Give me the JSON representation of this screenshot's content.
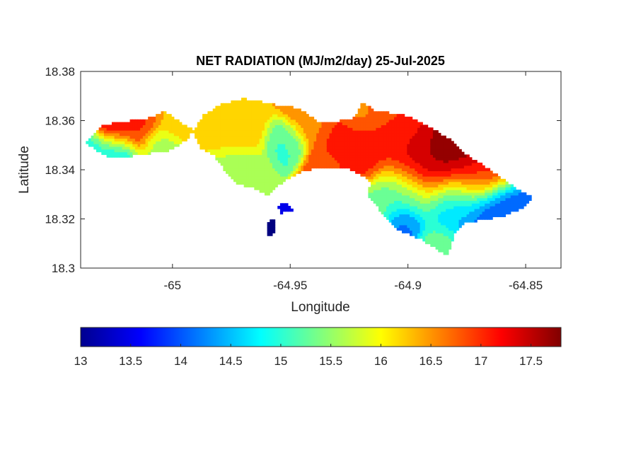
{
  "chart_data": {
    "type": "heatmap",
    "title": "NET RADIATION (MJ/m2/day) 25-Jul-2025",
    "xlabel": "Longitude",
    "ylabel": "Latitude",
    "xlim": [
      -65.039,
      -64.835
    ],
    "ylim": [
      18.3,
      18.38
    ],
    "xticks": [
      -65,
      -64.95,
      -64.9,
      -64.85
    ],
    "xtick_labels": [
      "-65",
      "-64.95",
      "-64.9",
      "-64.85"
    ],
    "yticks": [
      18.3,
      18.32,
      18.34,
      18.36,
      18.38
    ],
    "ytick_labels": [
      "18.3",
      "18.32",
      "18.34",
      "18.36",
      "18.38"
    ],
    "colorbar": {
      "colormap": "jet",
      "range": [
        13,
        17.8
      ],
      "ticks": [
        13,
        13.5,
        14,
        14.5,
        15,
        15.5,
        16,
        16.5,
        17,
        17.5
      ],
      "tick_labels": [
        "13",
        "13.5",
        "14",
        "14.5",
        "15",
        "15.5",
        "16",
        "16.5",
        "17",
        "17.5"
      ],
      "placement": "bottom"
    },
    "regions": [
      {
        "name": "west-strip",
        "polygon": [
          [
            -65.0365,
            18.351
          ],
          [
            -65.029,
            18.3585
          ],
          [
            -65.01,
            18.361
          ],
          [
            -65.0035,
            18.364
          ],
          [
            -64.996,
            18.359
          ],
          [
            -64.9915,
            18.3565
          ],
          [
            -64.993,
            18.353
          ],
          [
            -65.001,
            18.348
          ],
          [
            -65.011,
            18.3465
          ],
          [
            -65.025,
            18.3445
          ],
          [
            -65.031,
            18.347
          ],
          [
            -65.0365,
            18.351
          ]
        ]
      },
      {
        "name": "main-island",
        "polygon": [
          [
            -64.9915,
            18.3555
          ],
          [
            -64.987,
            18.362
          ],
          [
            -64.98,
            18.3665
          ],
          [
            -64.97,
            18.369
          ],
          [
            -64.956,
            18.3665
          ],
          [
            -64.946,
            18.365
          ],
          [
            -64.937,
            18.359
          ],
          [
            -64.929,
            18.36
          ],
          [
            -64.925,
            18.36
          ],
          [
            -64.922,
            18.3625
          ],
          [
            -64.9195,
            18.3675
          ],
          [
            -64.914,
            18.364
          ],
          [
            -64.902,
            18.3625
          ],
          [
            -64.893,
            18.3585
          ],
          [
            -64.882,
            18.3525
          ],
          [
            -64.878,
            18.348
          ],
          [
            -64.862,
            18.338
          ],
          [
            -64.852,
            18.331
          ],
          [
            -64.847,
            18.329
          ],
          [
            -64.852,
            18.324
          ],
          [
            -64.86,
            18.321
          ],
          [
            -64.876,
            18.3185
          ],
          [
            -64.88,
            18.3145
          ],
          [
            -64.883,
            18.305
          ],
          [
            -64.895,
            18.312
          ],
          [
            -64.905,
            18.316
          ],
          [
            -64.912,
            18.3235
          ],
          [
            -64.917,
            18.3295
          ],
          [
            -64.916,
            18.3355
          ],
          [
            -64.926,
            18.341
          ],
          [
            -64.935,
            18.3405
          ],
          [
            -64.943,
            18.34
          ],
          [
            -64.95,
            18.337
          ],
          [
            -64.956,
            18.333
          ],
          [
            -64.96,
            18.3295
          ],
          [
            -64.966,
            18.333
          ],
          [
            -64.973,
            18.334
          ],
          [
            -64.978,
            18.34
          ],
          [
            -64.982,
            18.3455
          ],
          [
            -64.988,
            18.349
          ],
          [
            -64.9915,
            18.3555
          ]
        ]
      },
      {
        "name": "small-islet-a",
        "polygon": [
          [
            -64.9555,
            18.3255
          ],
          [
            -64.951,
            18.3265
          ],
          [
            -64.949,
            18.3235
          ],
          [
            -64.954,
            18.3225
          ]
        ]
      },
      {
        "name": "small-islet-b",
        "polygon": [
          [
            -64.96,
            18.319
          ],
          [
            -64.957,
            18.3195
          ],
          [
            -64.9565,
            18.314
          ],
          [
            -64.9595,
            18.313
          ]
        ]
      }
    ],
    "hotspots": [
      {
        "lon": -64.88,
        "lat": 18.345,
        "value": 17.8,
        "radius": 0.014
      },
      {
        "lon": -64.895,
        "lat": 18.344,
        "value": 17.6,
        "radius": 0.012
      },
      {
        "lon": -64.922,
        "lat": 18.348,
        "value": 17.3,
        "radius": 0.01
      },
      {
        "lon": -64.905,
        "lat": 18.357,
        "value": 16.9,
        "radius": 0.012
      },
      {
        "lon": -64.952,
        "lat": 18.352,
        "value": 15.1,
        "radius": 0.006
      },
      {
        "lon": -64.97,
        "lat": 18.357,
        "value": 16.2,
        "radius": 0.008
      },
      {
        "lon": -64.97,
        "lat": 18.34,
        "value": 15.6,
        "radius": 0.007
      },
      {
        "lon": -64.942,
        "lat": 18.361,
        "value": 16.6,
        "radius": 0.008
      },
      {
        "lon": -64.93,
        "lat": 18.342,
        "value": 16.8,
        "radius": 0.008
      },
      {
        "lon": -64.999,
        "lat": 18.36,
        "value": 16.3,
        "radius": 0.006
      },
      {
        "lon": -65.025,
        "lat": 18.357,
        "value": 17.5,
        "radius": 0.007
      },
      {
        "lon": -65.015,
        "lat": 18.358,
        "value": 17.0,
        "radius": 0.007
      },
      {
        "lon": -65.025,
        "lat": 18.348,
        "value": 14.7,
        "radius": 0.007
      },
      {
        "lon": -65.034,
        "lat": 18.3495,
        "value": 14.9,
        "radius": 0.005
      },
      {
        "lon": -65.005,
        "lat": 18.35,
        "value": 15.6,
        "radius": 0.006
      },
      {
        "lon": -64.902,
        "lat": 18.33,
        "value": 15.0,
        "radius": 0.011
      },
      {
        "lon": -64.88,
        "lat": 18.327,
        "value": 14.4,
        "radius": 0.01
      },
      {
        "lon": -64.864,
        "lat": 18.323,
        "value": 13.9,
        "radius": 0.009
      },
      {
        "lon": -64.915,
        "lat": 18.324,
        "value": 15.4,
        "radius": 0.007
      },
      {
        "lon": -64.902,
        "lat": 18.318,
        "value": 14.0,
        "radius": 0.006
      },
      {
        "lon": -64.887,
        "lat": 18.31,
        "value": 15.3,
        "radius": 0.006
      },
      {
        "lon": -64.87,
        "lat": 18.337,
        "value": 16.8,
        "radius": 0.008
      },
      {
        "lon": -64.92,
        "lat": 18.362,
        "value": 16.5,
        "radius": 0.006
      },
      {
        "lon": -64.9525,
        "lat": 18.3245,
        "value": 13.4,
        "radius": 0.003
      },
      {
        "lon": -64.9585,
        "lat": 18.3165,
        "value": 13.0,
        "radius": 0.004
      }
    ]
  }
}
